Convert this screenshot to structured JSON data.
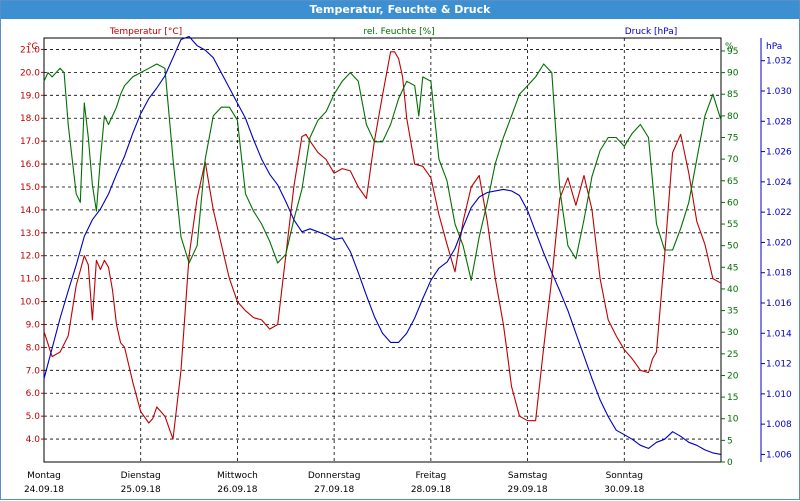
{
  "window": {
    "title": "Temperatur, Feuchte & Druck"
  },
  "chart_data": {
    "type": "line",
    "title": "Temperatur, Feuchte & Druck",
    "xlim": [
      0,
      168
    ],
    "x_ticks": [
      {
        "hour": 0,
        "day": "Montag",
        "date": "24.09.18"
      },
      {
        "hour": 24,
        "day": "Dienstag",
        "date": "25.09.18"
      },
      {
        "hour": 48,
        "day": "Mittwoch",
        "date": "26.09.18"
      },
      {
        "hour": 72,
        "day": "Donnerstag",
        "date": "27.09.18"
      },
      {
        "hour": 96,
        "day": "Freitag",
        "date": "28.09.18"
      },
      {
        "hour": 120,
        "day": "Samstag",
        "date": "29.09.18"
      },
      {
        "hour": 144,
        "day": "Sonntag",
        "date": "30.09.18"
      }
    ],
    "grid": true,
    "colors": {
      "temperature": "#c00000",
      "humidity": "#007000",
      "pressure": "#0000c0"
    },
    "axes": {
      "left": {
        "unit": "°C",
        "min": 3.0,
        "max": 21.5,
        "ticks": [
          4.0,
          5.0,
          6.0,
          7.0,
          8.0,
          9.0,
          10.0,
          11.0,
          12.0,
          13.0,
          14.0,
          15.0,
          16.0,
          17.0,
          18.0,
          19.0,
          20.0,
          21.0
        ],
        "decimals": 1
      },
      "right1": {
        "unit": "%",
        "min": 0,
        "max": 98,
        "ticks": [
          0,
          5,
          10,
          15,
          20,
          25,
          30,
          35,
          40,
          45,
          50,
          55,
          60,
          65,
          70,
          75,
          80,
          85,
          90,
          95
        ],
        "decimals": 0
      },
      "right2": {
        "unit": "hPa",
        "min": 1.0055,
        "max": 1.0335,
        "ticks": [
          1.006,
          1.008,
          1.01,
          1.012,
          1.014,
          1.016,
          1.018,
          1.02,
          1.022,
          1.024,
          1.026,
          1.028,
          1.03,
          1.032
        ],
        "decimals": 3
      }
    },
    "series": [
      {
        "name": "Temperatur [°C]",
        "axis": "left",
        "x": [
          0,
          2,
          4,
          6,
          8,
          10,
          11,
          12,
          13,
          14,
          15,
          16,
          17,
          18,
          19,
          20,
          22,
          24,
          26,
          27,
          28,
          30,
          31,
          32,
          34,
          36,
          38,
          40,
          42,
          44,
          46,
          48,
          50,
          52,
          54,
          56,
          58,
          60,
          62,
          64,
          65,
          66,
          68,
          70,
          72,
          74,
          76,
          78,
          80,
          82,
          84,
          86,
          87,
          88,
          89,
          90,
          91,
          92,
          94,
          96,
          98,
          100,
          102,
          104,
          106,
          108,
          110,
          112,
          114,
          115,
          116,
          118,
          120,
          122,
          124,
          126,
          128,
          130,
          132,
          134,
          136,
          138,
          140,
          142,
          144,
          146,
          148,
          150,
          151,
          152,
          154,
          156,
          158,
          160,
          162,
          164,
          166,
          168
        ],
        "values": [
          8.7,
          7.6,
          7.8,
          8.5,
          10.7,
          12.0,
          11.6,
          9.2,
          11.8,
          11.4,
          11.8,
          11.5,
          10.5,
          9.0,
          8.2,
          8.0,
          6.5,
          5.2,
          4.7,
          4.9,
          5.4,
          5.0,
          4.5,
          4.0,
          7.0,
          12.0,
          14.5,
          16.1,
          14.0,
          12.5,
          11.0,
          10.0,
          9.6,
          9.3,
          9.2,
          8.8,
          9.0,
          12.0,
          15.0,
          17.2,
          17.3,
          17.0,
          16.5,
          16.2,
          15.6,
          15.8,
          15.7,
          15.0,
          14.5,
          17.0,
          19.0,
          20.9,
          20.9,
          20.6,
          19.8,
          18.0,
          17.0,
          16.0,
          15.9,
          15.4,
          13.8,
          12.5,
          11.3,
          13.5,
          15.0,
          15.5,
          13.5,
          11.0,
          9.0,
          7.7,
          6.3,
          5.0,
          4.8,
          4.8,
          8.0,
          11.0,
          14.5,
          15.4,
          14.2,
          15.5,
          14.0,
          11.0,
          9.2,
          8.5,
          7.9,
          7.5,
          7.0,
          6.9,
          7.5,
          7.8,
          12.0,
          16.5,
          17.3,
          15.6,
          13.5,
          12.5,
          11.0,
          10.8
        ]
      },
      {
        "name": "rel. Feuchte [%]",
        "axis": "right1",
        "x": [
          0,
          1,
          2,
          3,
          4,
          5,
          6,
          8,
          9,
          10,
          11,
          12,
          13,
          14,
          15,
          16,
          17,
          18,
          19,
          20,
          22,
          24,
          26,
          28,
          30,
          32,
          34,
          36,
          38,
          40,
          42,
          44,
          46,
          48,
          50,
          52,
          54,
          56,
          58,
          60,
          62,
          64,
          66,
          68,
          70,
          72,
          74,
          76,
          78,
          80,
          82,
          84,
          86,
          88,
          90,
          92,
          93,
          94,
          96,
          98,
          100,
          102,
          104,
          106,
          108,
          110,
          112,
          114,
          116,
          118,
          120,
          122,
          124,
          126,
          128,
          130,
          132,
          134,
          136,
          138,
          140,
          142,
          144,
          146,
          148,
          150,
          152,
          154,
          156,
          158,
          160,
          162,
          164,
          166,
          168
        ],
        "values": [
          88,
          90,
          89,
          90,
          91,
          90,
          78,
          62,
          60,
          83,
          75,
          64,
          58,
          70,
          80,
          78,
          80,
          82,
          85,
          87,
          89,
          90,
          91,
          92,
          91,
          70,
          52,
          46,
          50,
          70,
          80,
          82,
          82,
          79,
          62,
          58,
          55,
          51,
          46,
          48,
          56,
          63,
          75,
          79,
          81,
          85,
          88,
          90,
          88,
          78,
          74,
          74,
          78,
          84,
          88,
          87,
          80,
          89,
          88,
          70,
          65,
          55,
          50,
          42,
          52,
          60,
          69,
          75,
          80,
          85,
          87,
          89,
          92,
          90,
          63,
          50,
          47,
          56,
          66,
          72,
          75,
          75,
          73,
          76,
          78,
          75,
          55,
          49,
          49,
          54,
          60,
          70,
          80,
          85,
          79
        ]
      },
      {
        "name": "Druck [hPa]",
        "axis": "right2",
        "x": [
          0,
          2,
          4,
          6,
          8,
          10,
          12,
          14,
          16,
          18,
          20,
          22,
          24,
          26,
          28,
          30,
          32,
          34,
          36,
          38,
          40,
          42,
          44,
          46,
          48,
          50,
          52,
          54,
          56,
          58,
          60,
          62,
          64,
          66,
          68,
          70,
          72,
          74,
          76,
          78,
          80,
          82,
          84,
          86,
          88,
          90,
          92,
          94,
          96,
          98,
          100,
          102,
          104,
          106,
          108,
          110,
          112,
          114,
          116,
          118,
          120,
          122,
          124,
          126,
          128,
          130,
          132,
          134,
          136,
          138,
          140,
          142,
          144,
          146,
          148,
          150,
          152,
          154,
          156,
          158,
          160,
          162,
          164,
          166,
          168
        ],
        "values": [
          1.011,
          1.013,
          1.015,
          1.0168,
          1.0185,
          1.0204,
          1.0215,
          1.0222,
          1.0232,
          1.0245,
          1.0257,
          1.0272,
          1.0285,
          1.0295,
          1.0302,
          1.031,
          1.0322,
          1.0334,
          1.0336,
          1.033,
          1.0327,
          1.0322,
          1.0312,
          1.0302,
          1.0292,
          1.0282,
          1.0268,
          1.0255,
          1.0245,
          1.0238,
          1.0227,
          1.0215,
          1.0207,
          1.0209,
          1.0207,
          1.0205,
          1.0202,
          1.0203,
          1.0194,
          1.018,
          1.0165,
          1.0151,
          1.014,
          1.0134,
          1.0134,
          1.014,
          1.015,
          1.0163,
          1.0175,
          1.0183,
          1.0187,
          1.0196,
          1.021,
          1.0223,
          1.023,
          1.0233,
          1.0234,
          1.0235,
          1.0234,
          1.0231,
          1.0221,
          1.0207,
          1.0193,
          1.018,
          1.0168,
          1.0155,
          1.014,
          1.0125,
          1.011,
          1.0096,
          1.0085,
          1.0076,
          1.0073,
          1.007,
          1.0066,
          1.0064,
          1.0068,
          1.007,
          1.0075,
          1.0072,
          1.0068,
          1.0066,
          1.0063,
          1.0061,
          1.006
        ]
      }
    ]
  }
}
